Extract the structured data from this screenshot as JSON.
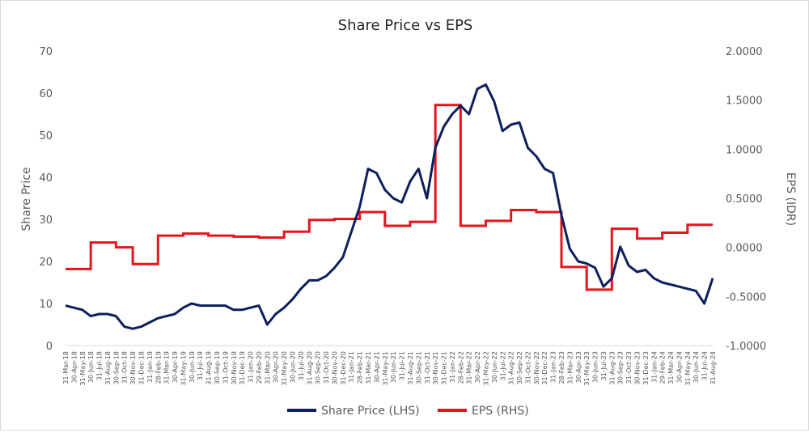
{
  "chart_data": {
    "type": "line",
    "title": "Share Price vs EPS",
    "ylabel_left": "Share Price",
    "ylabel_right": "EPS (IDR)",
    "ylim_left": [
      0,
      70
    ],
    "yticks_left": [
      "0",
      "10",
      "20",
      "30",
      "40",
      "50",
      "60",
      "70"
    ],
    "ylim_right": [
      -1.0,
      2.0
    ],
    "yticks_right": [
      "-1.0000",
      "-0.5000",
      "0.0000",
      "0.5000",
      "1.0000",
      "1.5000",
      "2.0000"
    ],
    "x_ticks": [
      "31-Mar-18",
      "30-Apr-18",
      "31-May-18",
      "30-Jun-18",
      "31-Jul-18",
      "31-Aug-18",
      "30-Sep-18",
      "31-Oct-18",
      "30-Nov-18",
      "31-Dec-18",
      "31-Jan-19",
      "28-Feb-19",
      "31-Mar-19",
      "30-Apr-19",
      "31-May-19",
      "30-Jun-19",
      "31-Jul-19",
      "31-Aug-19",
      "30-Sep-19",
      "31-Oct-19",
      "30-Nov-19",
      "31-Dec-19",
      "31-Jan-20",
      "29-Feb-20",
      "31-Mar-20",
      "30-Apr-20",
      "31-May-20",
      "30-Jun-20",
      "31-Jul-20",
      "31-Aug-20",
      "30-Sep-20",
      "31-Oct-20",
      "30-Nov-20",
      "31-Dec-20",
      "31-Jan-21",
      "28-Feb-21",
      "31-Mar-21",
      "30-Apr-21",
      "31-May-21",
      "30-Jun-21",
      "31-Jul-21",
      "31-Aug-21",
      "30-Sep-21",
      "31-Oct-21",
      "30-Nov-21",
      "31-Dec-21",
      "31-Jan-22",
      "28-Feb-22",
      "31-Mar-22",
      "30-Apr-22",
      "31-May-22",
      "30-Jun-22",
      "31-Jul-22",
      "31-Aug-22",
      "30-Sep-22",
      "31-Oct-22",
      "30-Nov-22",
      "31-Dec-22",
      "31-Jan-23",
      "28-Feb-23",
      "31-Mar-23",
      "30-Apr-23",
      "31-May-23",
      "30-Jun-23",
      "31-Jul-23",
      "31-Aug-23",
      "30-Sep-23",
      "31-Oct-23",
      "30-Nov-23",
      "31-Dec-23",
      "31-Jan-24",
      "29-Feb-24",
      "31-Mar-24",
      "30-Apr-24",
      "31-May-24",
      "30-Jun-24",
      "31-Jul-24",
      "31-Aug-24"
    ],
    "series": [
      {
        "name": "Share Price (LHS)",
        "axis": "left",
        "color": "#0d1f5c",
        "values": [
          9.5,
          9.0,
          8.5,
          7.0,
          7.5,
          7.5,
          7.0,
          4.5,
          4.0,
          4.5,
          5.5,
          6.5,
          7.0,
          7.5,
          9.0,
          10.0,
          9.5,
          9.5,
          9.5,
          9.5,
          8.5,
          8.5,
          9.0,
          9.5,
          5.0,
          7.5,
          9.0,
          11.0,
          13.5,
          15.5,
          15.5,
          16.5,
          18.5,
          21.0,
          27.0,
          33.0,
          42.0,
          41.0,
          37.0,
          35.0,
          34.0,
          39.0,
          42.0,
          35.0,
          47.0,
          52.0,
          55.0,
          57.0,
          55.0,
          61.0,
          62.0,
          58.0,
          51.0,
          52.5,
          53.0,
          47.0,
          45.0,
          42.0,
          41.0,
          31.0,
          23.0,
          20.0,
          19.5,
          18.5,
          14.0,
          16.0,
          23.5,
          19.0,
          17.5,
          18.0,
          16.0,
          15.0,
          14.5,
          14.0,
          13.5,
          13.0,
          10.0,
          16.0
        ]
      },
      {
        "name": "EPS (RHS)",
        "axis": "right",
        "color": "#e6141c",
        "step": true,
        "values": [
          -0.22,
          -0.22,
          -0.22,
          0.05,
          0.05,
          0.05,
          0.0,
          0.0,
          -0.17,
          -0.17,
          -0.17,
          0.12,
          0.12,
          0.12,
          0.14,
          0.14,
          0.14,
          0.12,
          0.12,
          0.12,
          0.11,
          0.11,
          0.11,
          0.1,
          0.1,
          0.1,
          0.16,
          0.16,
          0.16,
          0.28,
          0.28,
          0.28,
          0.29,
          0.29,
          0.29,
          0.36,
          0.36,
          0.36,
          0.22,
          0.22,
          0.22,
          0.26,
          0.26,
          0.26,
          1.45,
          1.45,
          1.45,
          0.22,
          0.22,
          0.22,
          0.27,
          0.27,
          0.27,
          0.38,
          0.38,
          0.38,
          0.36,
          0.36,
          0.36,
          -0.2,
          -0.2,
          -0.2,
          -0.43,
          -0.43,
          -0.43,
          0.19,
          0.19,
          0.19,
          0.09,
          0.09,
          0.09,
          0.15,
          0.15,
          0.15,
          0.23,
          0.23,
          0.23,
          0.23
        ]
      }
    ],
    "legend_position": "bottom",
    "grid": false
  }
}
